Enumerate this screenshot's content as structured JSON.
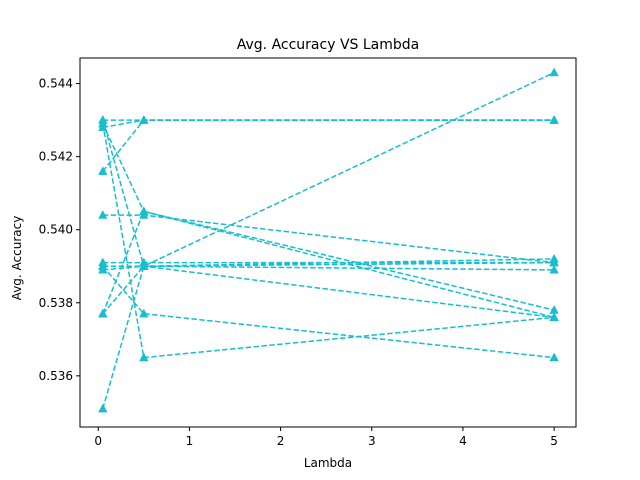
{
  "chart_data": {
    "type": "line",
    "title": "Avg. Accuracy VS Lambda",
    "xlabel": "Lambda",
    "ylabel": "Avg. Accuracy",
    "xlim": [
      -0.2,
      5.24
    ],
    "ylim": [
      0.5346,
      0.5447
    ],
    "xticks": [
      0,
      1,
      2,
      3,
      4,
      5
    ],
    "yticks": [
      0.536,
      0.538,
      0.54,
      0.542,
      0.544
    ],
    "ytick_labels": [
      "0.536",
      "0.538",
      "0.540",
      "0.542",
      "0.544"
    ],
    "line_style": "dashed",
    "marker": "triangle-up",
    "color": "#17becf",
    "grid": false,
    "series": [
      {
        "x": [
          0.05,
          0.5,
          5
        ],
        "y": [
          0.543,
          0.543,
          0.543
        ]
      },
      {
        "x": [
          0.05,
          0.5,
          5
        ],
        "y": [
          0.5428,
          0.543,
          0.543
        ]
      },
      {
        "x": [
          0.05,
          0.5,
          5
        ],
        "y": [
          0.5416,
          0.543,
          0.543
        ]
      },
      {
        "x": [
          0.05,
          0.5,
          5
        ],
        "y": [
          0.5351,
          0.539,
          0.5443
        ]
      },
      {
        "x": [
          0.05,
          0.5,
          5
        ],
        "y": [
          0.543,
          0.539,
          0.5376
        ]
      },
      {
        "x": [
          0.05,
          0.5,
          5
        ],
        "y": [
          0.5429,
          0.5365,
          0.5376
        ]
      },
      {
        "x": [
          0.05,
          0.5,
          5
        ],
        "y": [
          0.5429,
          0.5405,
          0.5376
        ]
      },
      {
        "x": [
          0.05,
          0.5,
          5
        ],
        "y": [
          0.5404,
          0.5404,
          0.5391
        ]
      },
      {
        "x": [
          0.05,
          0.5,
          5
        ],
        "y": [
          0.5391,
          0.5391,
          0.5391
        ]
      },
      {
        "x": [
          0.05,
          0.5,
          5
        ],
        "y": [
          0.539,
          0.5377,
          0.5365
        ]
      },
      {
        "x": [
          0.05,
          0.5,
          5
        ],
        "y": [
          0.5389,
          0.539,
          0.5392
        ]
      },
      {
        "x": [
          0.05,
          0.5,
          5
        ],
        "y": [
          0.5377,
          0.5405,
          0.5378
        ]
      },
      {
        "x": [
          0.05,
          0.5,
          5
        ],
        "y": [
          0.5377,
          0.539,
          0.5389
        ]
      },
      {
        "x": [
          0.05,
          0.5,
          5
        ],
        "y": [
          0.539,
          0.539,
          0.5391
        ]
      }
    ]
  }
}
